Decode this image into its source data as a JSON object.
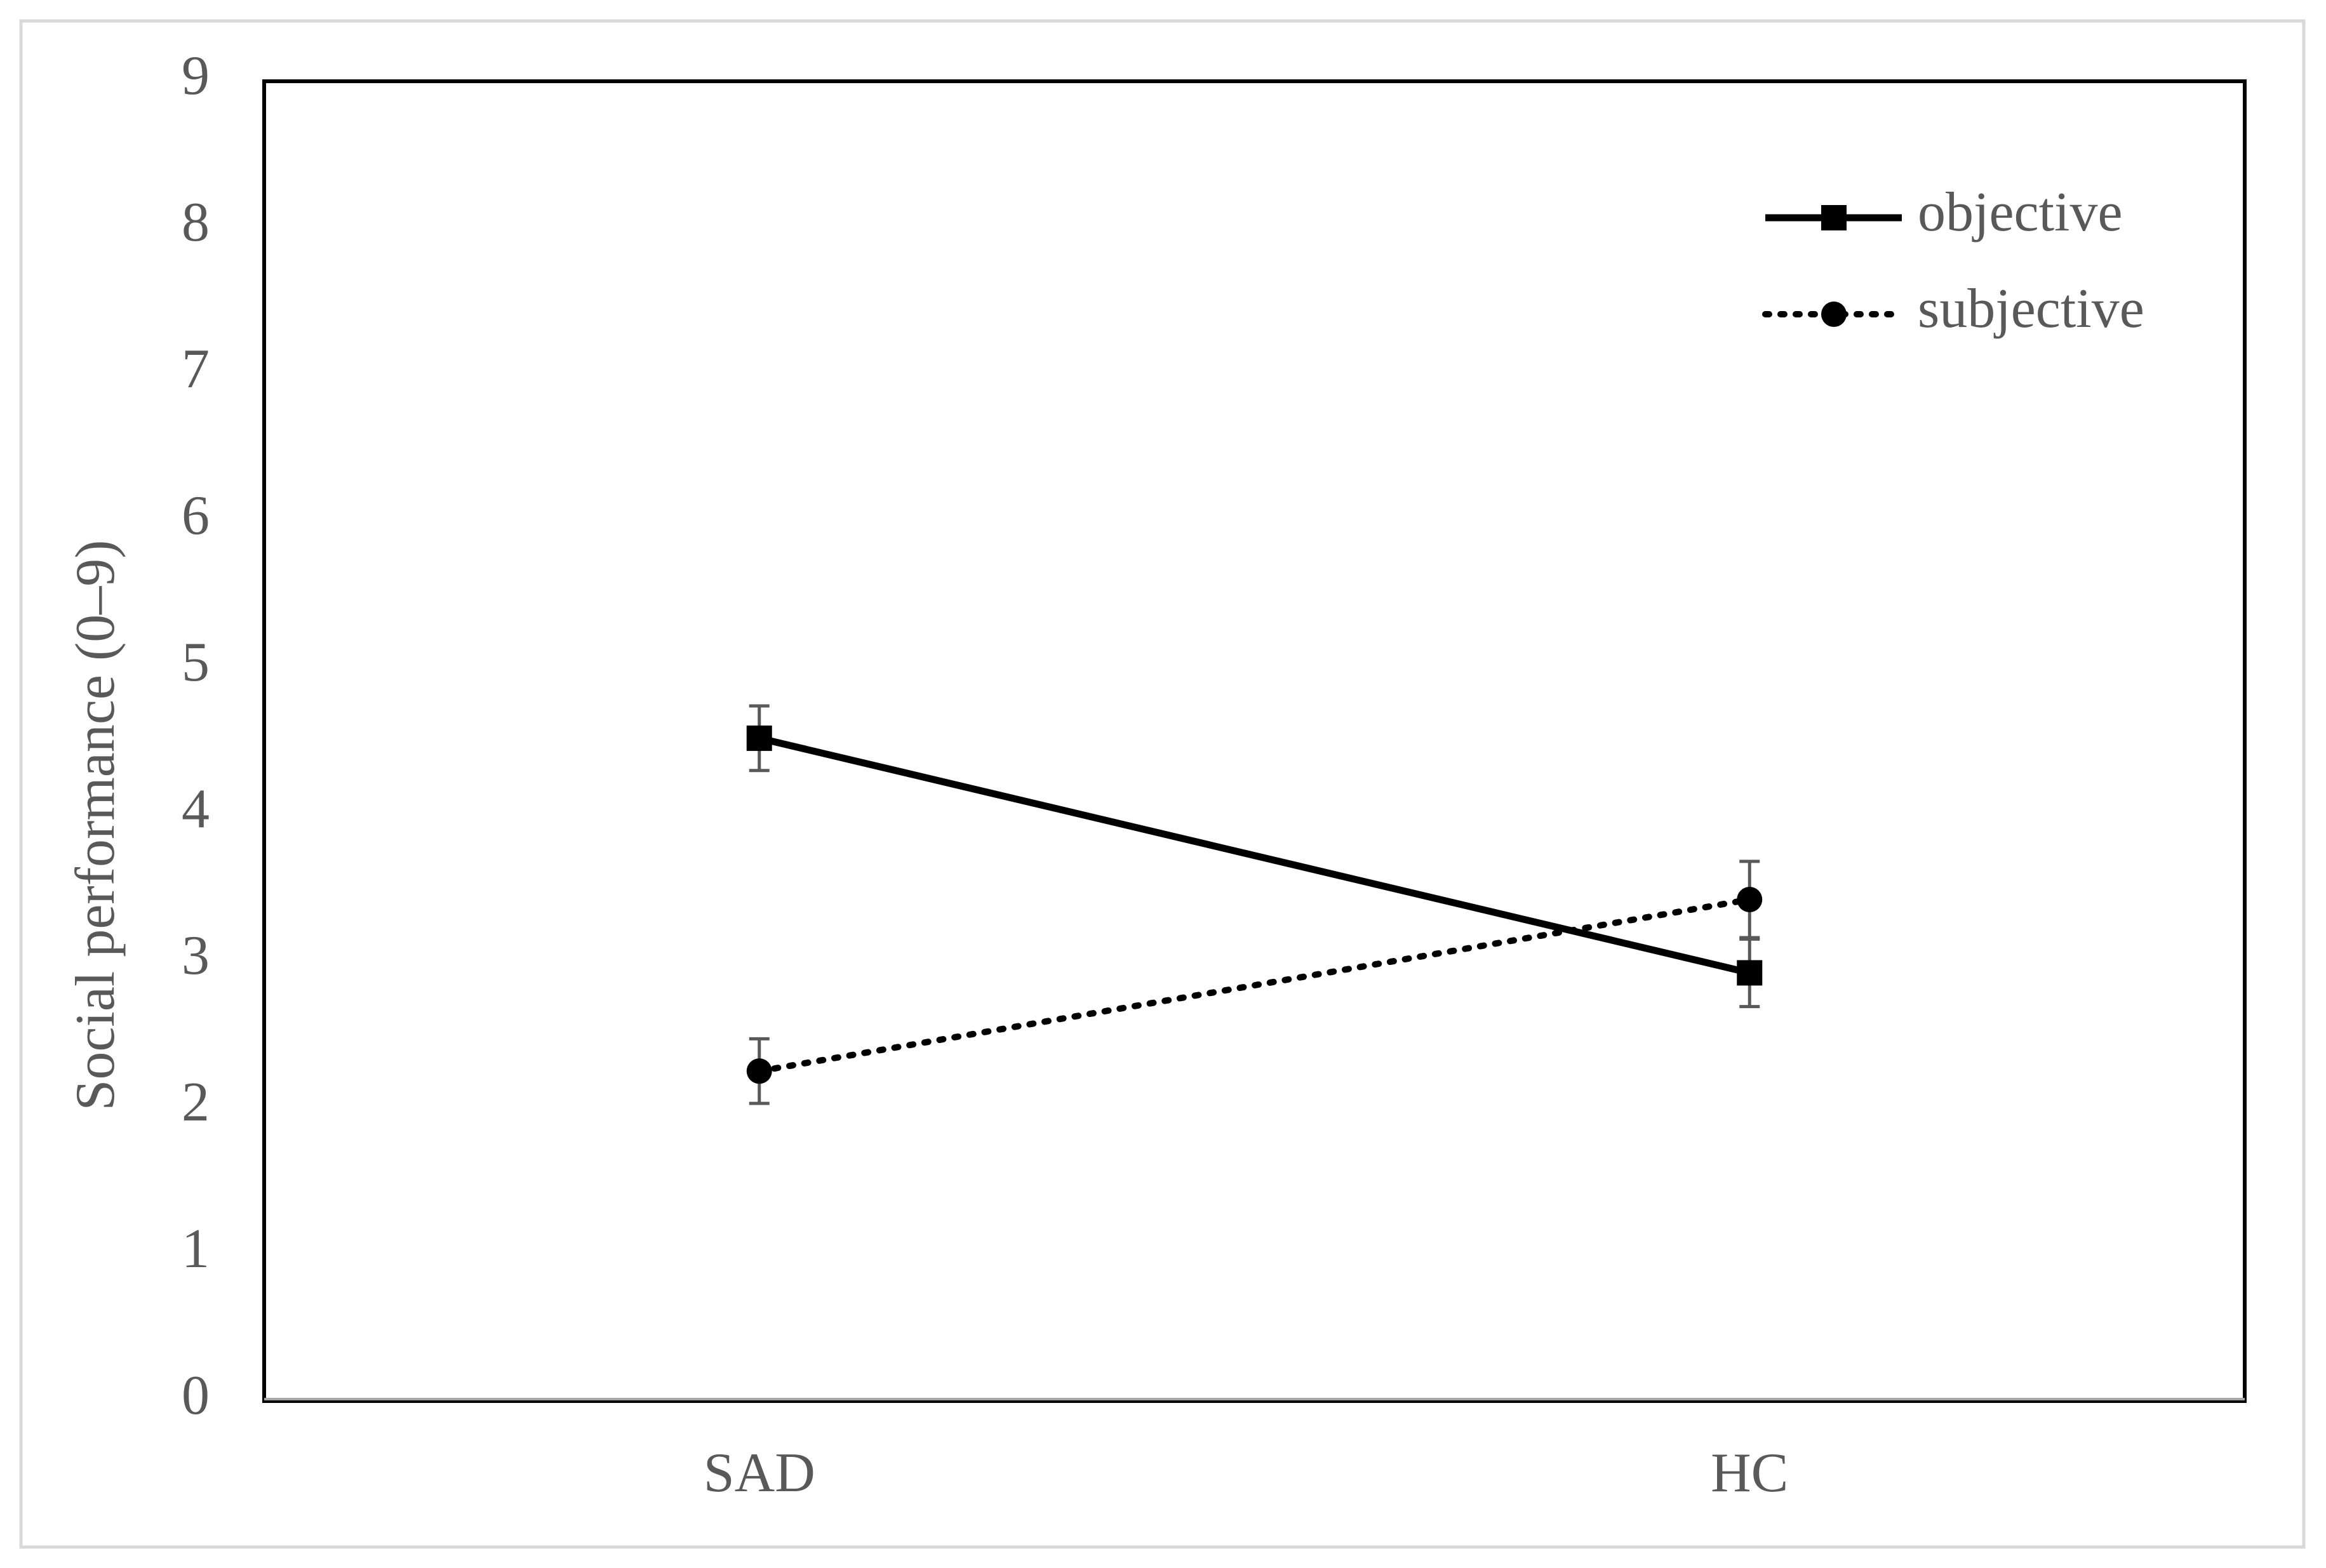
{
  "chart_data": {
    "type": "line",
    "y_label": "Social performance (0–9)",
    "categories": [
      "SAD",
      "HC"
    ],
    "series": [
      {
        "name": "objective",
        "color": "#000000",
        "marker": "square",
        "line_style": "solid",
        "values": [
          4.52,
          2.92
        ],
        "errors": [
          0.22,
          0.23
        ]
      },
      {
        "name": "subjective",
        "color": "#000000",
        "marker": "circle",
        "line_style": "dotted",
        "values": [
          2.25,
          3.42
        ],
        "errors": [
          0.22,
          0.26
        ]
      }
    ],
    "ylim": [
      0,
      9
    ],
    "yticks": [
      0,
      1,
      2,
      3,
      4,
      5,
      6,
      7,
      8,
      9
    ],
    "grid": false,
    "legend": "upper right"
  }
}
